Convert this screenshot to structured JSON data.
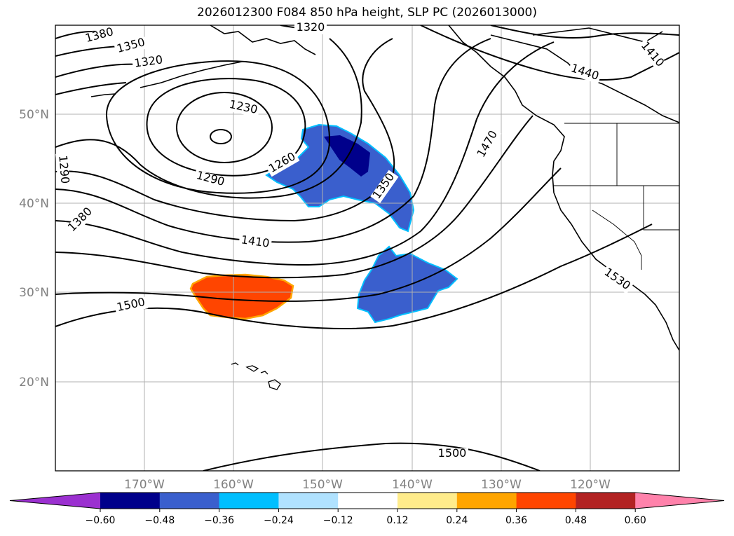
{
  "title": "2026012300 F084 850 hPa height, SLP PC (2026013000)",
  "map": {
    "lat_labels": [
      "50°N",
      "40°N",
      "30°N",
      "20°N"
    ],
    "lon_labels": [
      "170°W",
      "160°W",
      "150°W",
      "140°W",
      "130°W",
      "120°W"
    ],
    "contour_labels": [
      "1380",
      "1350",
      "1320",
      "1320",
      "1230",
      "1260",
      "1290",
      "1290",
      "1380",
      "1410",
      "1350",
      "1470",
      "1440",
      "1410",
      "1500",
      "1530",
      "1500"
    ]
  },
  "colorbar": {
    "colors": [
      "#9b30d0",
      "#00008b",
      "#3a5fcd",
      "#00bfff",
      "#b0e2ff",
      "#ffffff",
      "#ffec8b",
      "#ffa500",
      "#ff4500",
      "#b22222",
      "#ff82ab"
    ],
    "tick_labels": [
      "−0.60",
      "−0.48",
      "−0.36",
      "−0.24",
      "−0.12",
      "0.12",
      "0.24",
      "0.36",
      "0.48",
      "0.60"
    ]
  }
}
